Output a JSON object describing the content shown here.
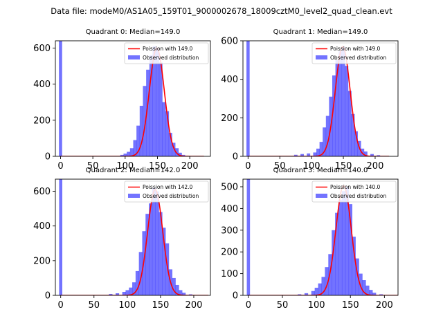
{
  "suptitle": "Data file: modeM0/AS1A05_159T01_9000002678_18009cztM0_level2_quad_clean.evt",
  "colors": {
    "hist": "#0000ff",
    "fit": "#ff0000",
    "axes": "#000000"
  },
  "chart_data": [
    {
      "type": "bar+line",
      "title": "Quadrant 0: Median=149.0",
      "legend": [
        "Poission with 149.0",
        "Observed distribution"
      ],
      "legend_position": "top-right",
      "xlim": [
        -8,
        232
      ],
      "ylim": [
        0,
        640
      ],
      "xticks": [
        0,
        50,
        100,
        150,
        200
      ],
      "yticks": [
        0,
        200,
        400,
        600
      ],
      "mean": 149.0,
      "peak": 600,
      "zero_bin_height": 640,
      "histogram": [
        [
          95,
          8
        ],
        [
          100,
          15
        ],
        [
          105,
          25
        ],
        [
          110,
          45
        ],
        [
          115,
          90
        ],
        [
          120,
          170
        ],
        [
          125,
          280
        ],
        [
          130,
          390
        ],
        [
          135,
          480
        ],
        [
          140,
          560
        ],
        [
          145,
          610
        ],
        [
          150,
          600
        ],
        [
          155,
          520
        ],
        [
          160,
          300
        ],
        [
          165,
          250
        ],
        [
          170,
          130
        ],
        [
          175,
          75
        ],
        [
          180,
          45
        ],
        [
          185,
          20
        ],
        [
          190,
          8
        ]
      ]
    },
    {
      "type": "bar+line",
      "title": "Quadrant 1: Median=149.0",
      "legend": [
        "Poission with 149.0",
        "Observed distribution"
      ],
      "legend_position": "top-right",
      "xlim": [
        -8,
        236
      ],
      "ylim": [
        0,
        600
      ],
      "xticks": [
        0,
        50,
        100,
        150,
        200
      ],
      "yticks": [
        0,
        200,
        400,
        600
      ],
      "mean": 149.0,
      "peak": 570,
      "zero_bin_height": 600,
      "histogram": [
        [
          75,
          8
        ],
        [
          85,
          12
        ],
        [
          95,
          15
        ],
        [
          105,
          20
        ],
        [
          110,
          40
        ],
        [
          115,
          75
        ],
        [
          120,
          150
        ],
        [
          125,
          210
        ],
        [
          130,
          310
        ],
        [
          135,
          420
        ],
        [
          140,
          500
        ],
        [
          145,
          545
        ],
        [
          150,
          570
        ],
        [
          155,
          470
        ],
        [
          160,
          340
        ],
        [
          165,
          220
        ],
        [
          170,
          130
        ],
        [
          175,
          80
        ],
        [
          180,
          40
        ],
        [
          185,
          25
        ],
        [
          195,
          12
        ],
        [
          205,
          6
        ]
      ]
    },
    {
      "type": "bar+line",
      "title": "Quadrant 2: Median=142.0",
      "legend": [
        "Poission with 142.0",
        "Observed distribution"
      ],
      "legend_position": "top-right",
      "xlim": [
        -8,
        225
      ],
      "ylim": [
        0,
        670
      ],
      "xticks": [
        0,
        50,
        100,
        150,
        200
      ],
      "yticks": [
        0,
        200,
        400,
        600
      ],
      "mean": 142.0,
      "peak": 610,
      "zero_bin_height": 670,
      "histogram": [
        [
          75,
          8
        ],
        [
          85,
          12
        ],
        [
          95,
          20
        ],
        [
          100,
          30
        ],
        [
          105,
          45
        ],
        [
          110,
          75
        ],
        [
          115,
          140
        ],
        [
          120,
          250
        ],
        [
          125,
          370
        ],
        [
          130,
          470
        ],
        [
          135,
          530
        ],
        [
          140,
          620
        ],
        [
          145,
          600
        ],
        [
          150,
          480
        ],
        [
          155,
          390
        ],
        [
          160,
          300
        ],
        [
          165,
          150
        ],
        [
          170,
          100
        ],
        [
          175,
          60
        ],
        [
          180,
          30
        ],
        [
          185,
          15
        ],
        [
          195,
          6
        ]
      ]
    },
    {
      "type": "bar+line",
      "title": "Quadrant 3: Median=140.0",
      "legend": [
        "Poission with 140.0",
        "Observed distribution"
      ],
      "legend_position": "top-right",
      "xlim": [
        -8,
        220
      ],
      "ylim": [
        0,
        535
      ],
      "xticks": [
        0,
        50,
        100,
        150,
        200
      ],
      "yticks": [
        0,
        100,
        200,
        300,
        400,
        500
      ],
      "mean": 140.0,
      "peak": 505,
      "zero_bin_height": 535,
      "histogram": [
        [
          75,
          5
        ],
        [
          85,
          10
        ],
        [
          95,
          20
        ],
        [
          100,
          35
        ],
        [
          105,
          55
        ],
        [
          110,
          85
        ],
        [
          115,
          130
        ],
        [
          120,
          190
        ],
        [
          125,
          300
        ],
        [
          130,
          380
        ],
        [
          135,
          440
        ],
        [
          140,
          480
        ],
        [
          145,
          500
        ],
        [
          150,
          420
        ],
        [
          155,
          270
        ],
        [
          160,
          170
        ],
        [
          165,
          100
        ],
        [
          170,
          70
        ],
        [
          175,
          45
        ],
        [
          180,
          25
        ],
        [
          185,
          12
        ],
        [
          195,
          5
        ]
      ]
    }
  ]
}
